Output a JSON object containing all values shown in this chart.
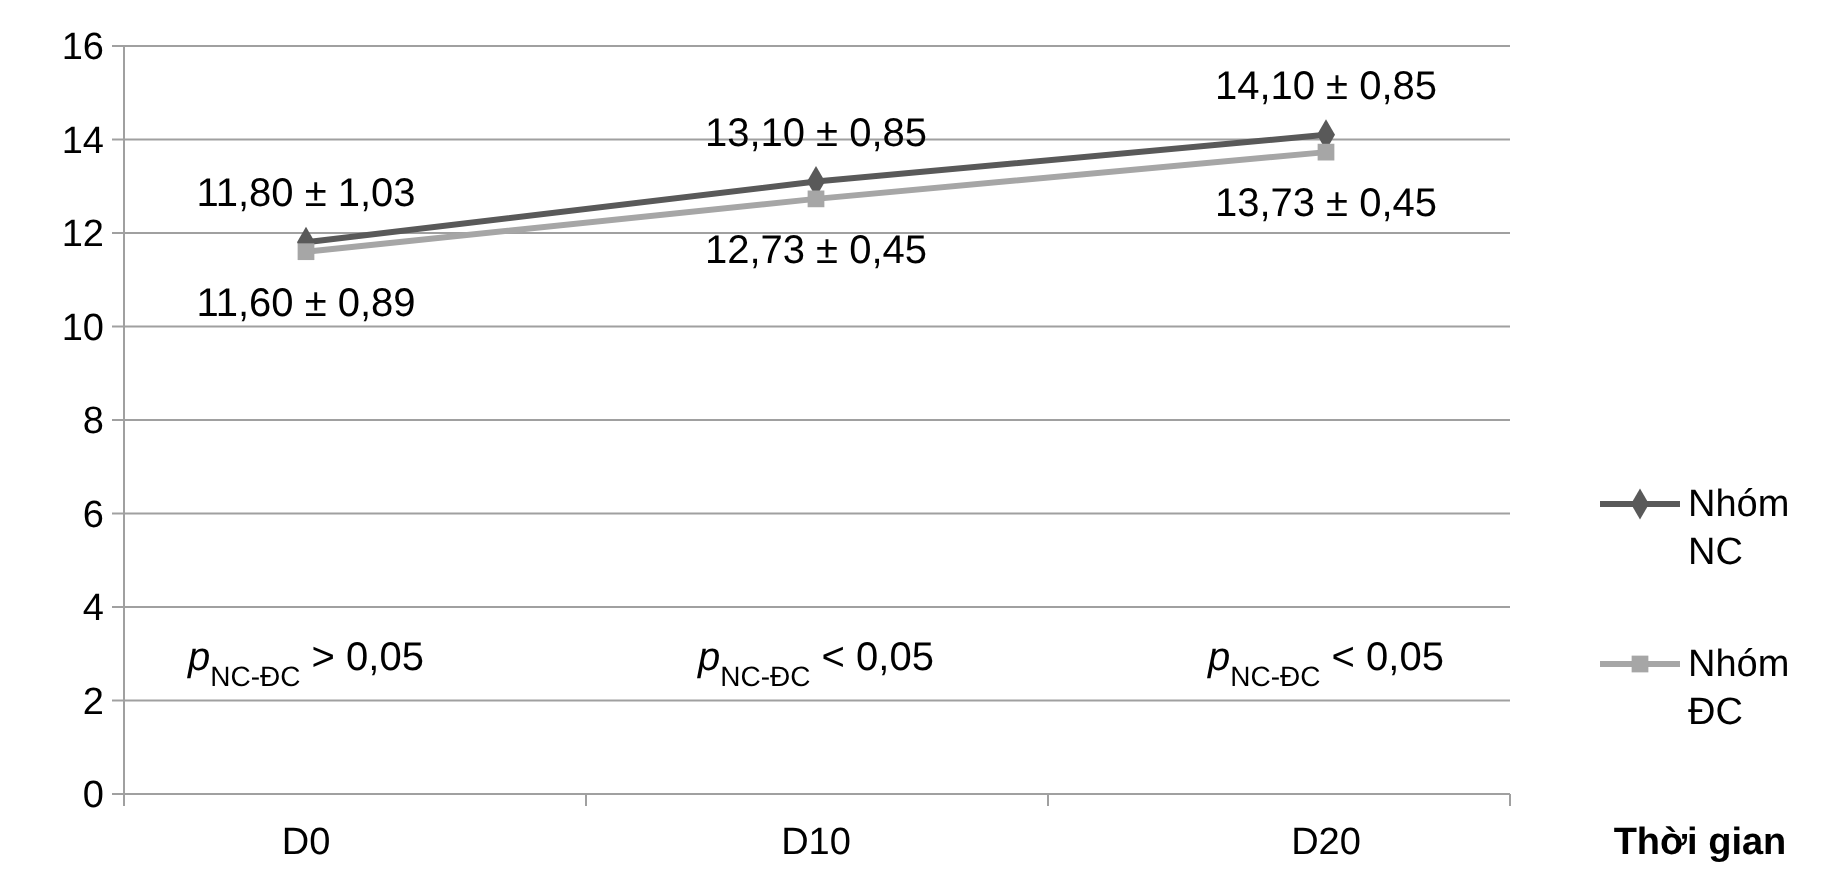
{
  "chart_data": {
    "type": "line",
    "xlabel": "Thời gian",
    "categories": [
      "D0",
      "D10",
      "D20"
    ],
    "series": [
      {
        "name": "Nhóm NC",
        "color": "#595959",
        "marker": "diamond",
        "values": [
          11.8,
          13.1,
          14.1
        ],
        "value_labels": [
          "11,80 ± 1,03",
          "13,10 ± 0,85",
          "14,10 ± 0,85"
        ]
      },
      {
        "name": "Nhóm ĐC",
        "color": "#a6a6a6",
        "marker": "square",
        "values": [
          11.6,
          12.73,
          13.73
        ],
        "value_labels": [
          "11,60 ± 0,89",
          "12,73 ± 0,45",
          "13,73 ± 0,45"
        ]
      }
    ],
    "annotations": [
      "p$_{NC-ĐC}$ > 0,05",
      "p$_{NC-ĐC}$ < 0,05",
      "p$_{NC-ĐC}$ < 0,05"
    ],
    "ylim": [
      0,
      16
    ],
    "yticks": [
      0,
      2,
      4,
      6,
      8,
      10,
      12,
      14,
      16
    ],
    "grid": "y",
    "legend": "right"
  }
}
